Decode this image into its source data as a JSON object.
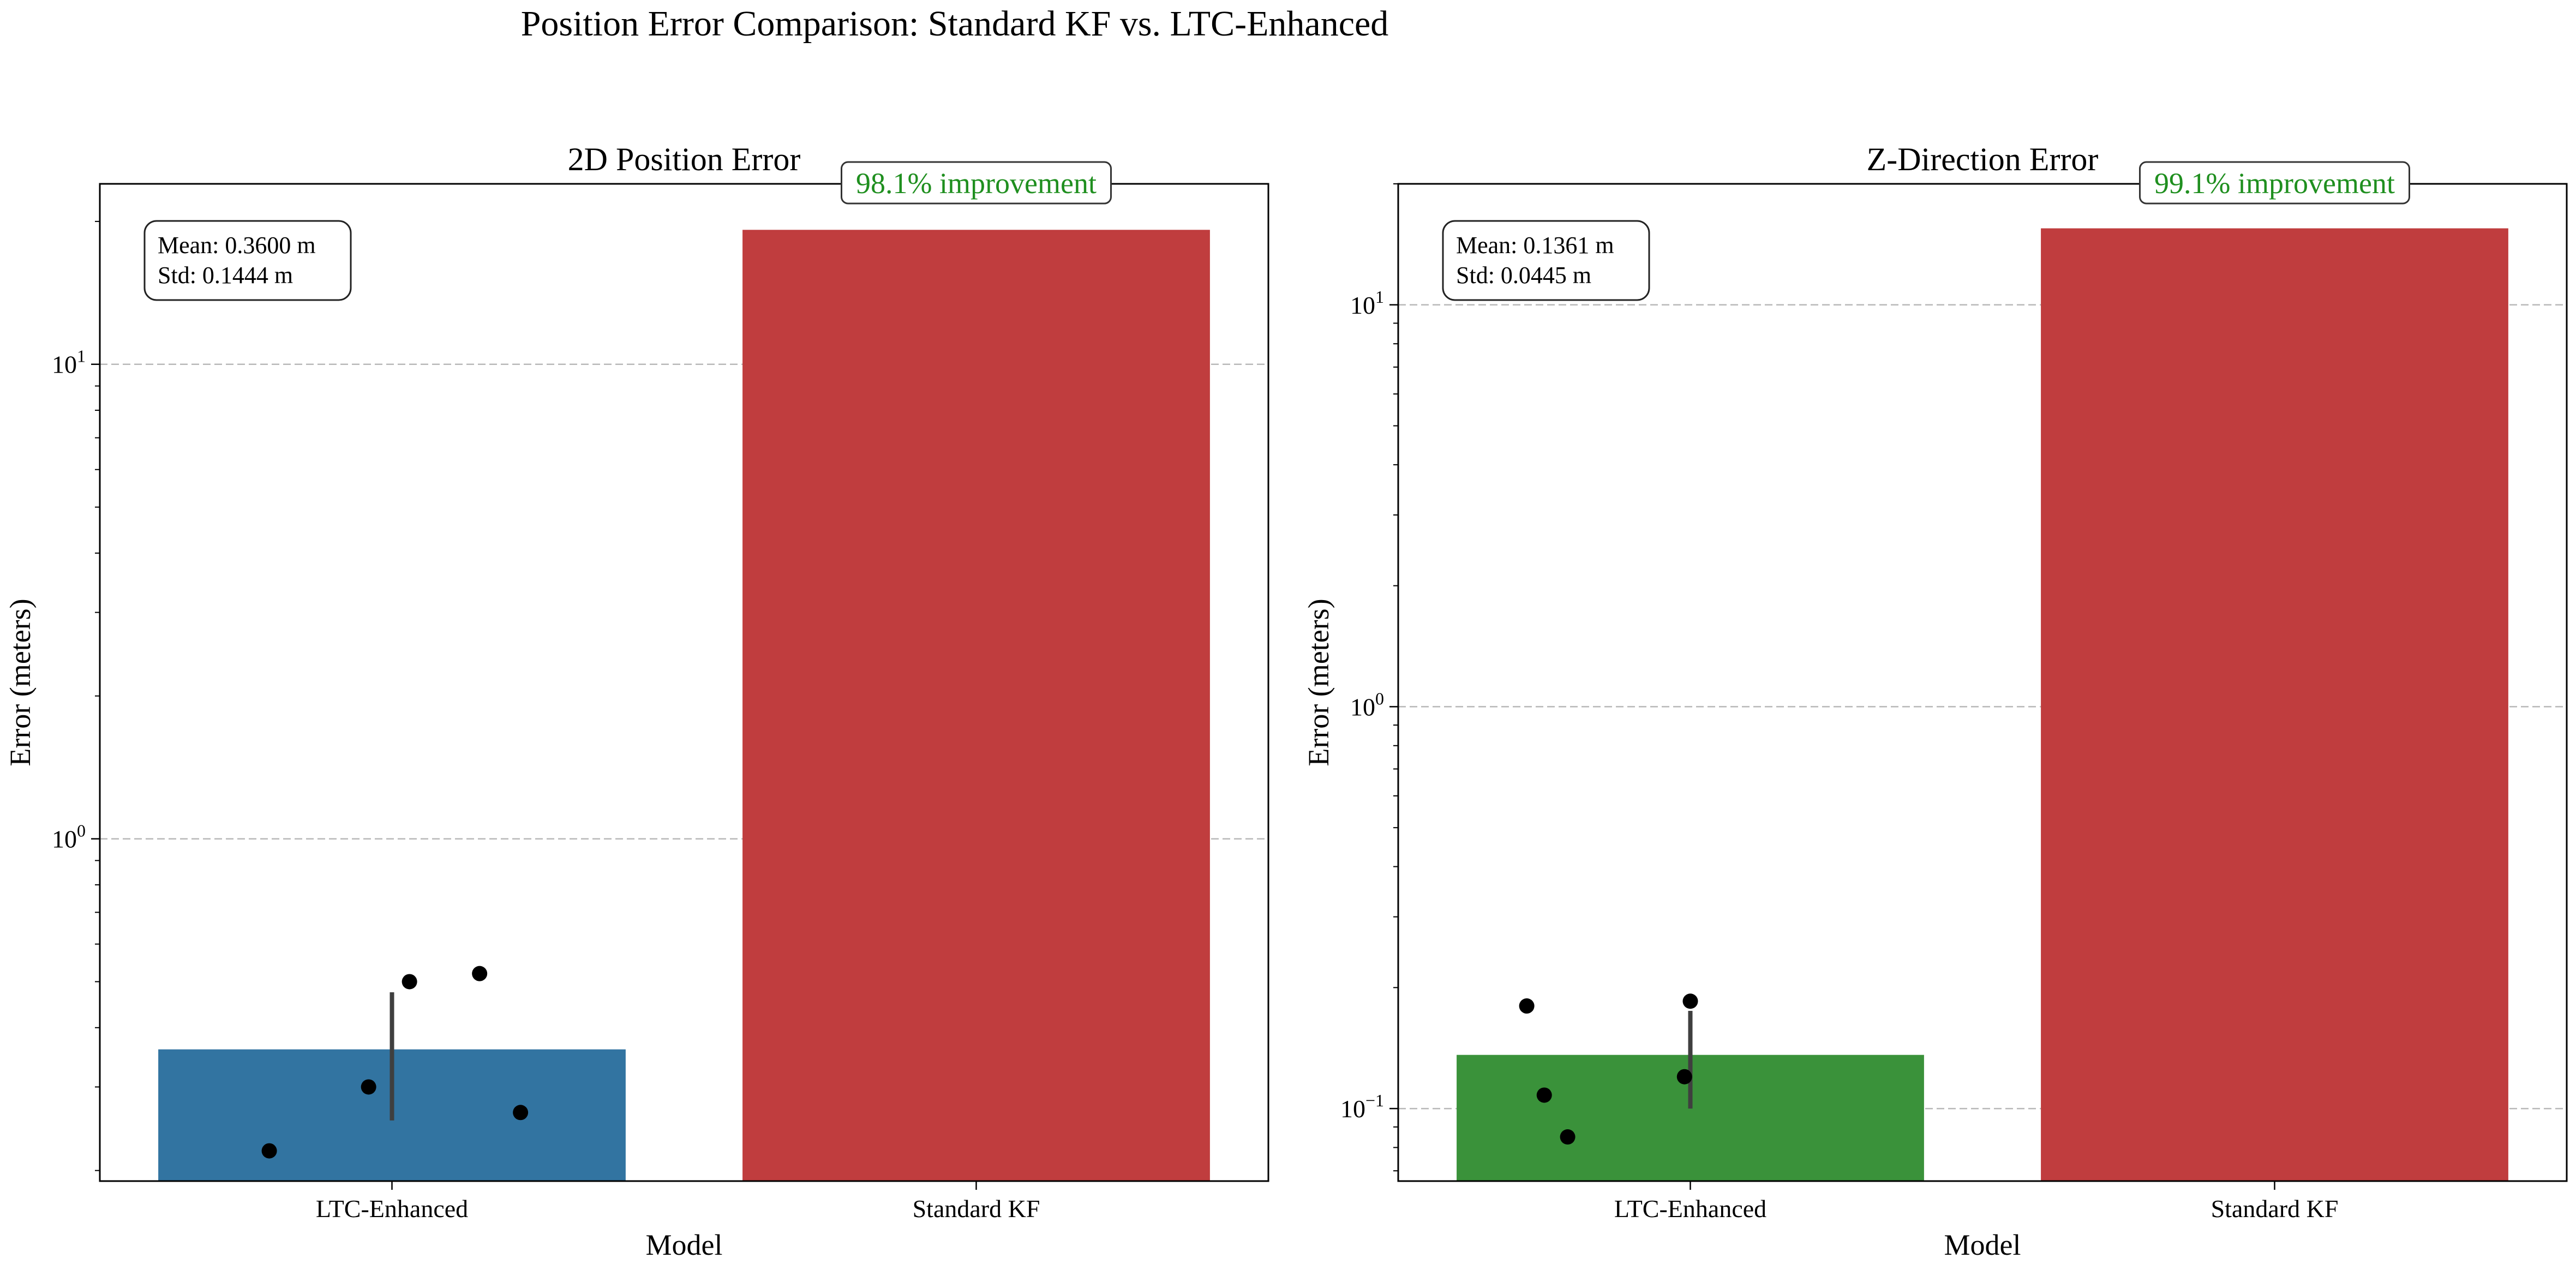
{
  "figure": {
    "title": "Position Error Comparison: Standard KF vs. LTC-Enhanced"
  },
  "chart_data": [
    {
      "type": "bar",
      "title": "2D Position Error",
      "xlabel": "Model",
      "ylabel": "Error (meters)",
      "yscale": "log",
      "ylim": [
        0.19,
        24
      ],
      "categories": [
        "LTC-Enhanced",
        "Standard KF"
      ],
      "values": [
        0.36,
        19.2
      ],
      "bar_colors": [
        "#3274a1",
        "#c03d3e"
      ],
      "y_ticks": [
        {
          "value": 1,
          "base": "10",
          "exp": "0"
        },
        {
          "value": 10,
          "base": "10",
          "exp": "1"
        }
      ],
      "error_bar": {
        "category": "LTC-Enhanced",
        "low": 0.255,
        "high": 0.475
      },
      "points": [
        {
          "category": "LTC-Enhanced",
          "jitter": -0.21,
          "value": 0.22
        },
        {
          "category": "LTC-Enhanced",
          "jitter": -0.04,
          "value": 0.3
        },
        {
          "category": "LTC-Enhanced",
          "jitter": 0.03,
          "value": 0.5
        },
        {
          "category": "LTC-Enhanced",
          "jitter": 0.15,
          "value": 0.52
        },
        {
          "category": "LTC-Enhanced",
          "jitter": 0.22,
          "value": 0.265
        }
      ],
      "stats": {
        "mean_label": "Mean: 0.3600 m",
        "std_label": "Std: 0.1444 m"
      },
      "improvement_label": "98.1% improvement",
      "grid": true
    },
    {
      "type": "bar",
      "title": "Z-Direction Error",
      "xlabel": "Model",
      "ylabel": "Error (meters)",
      "yscale": "log",
      "ylim": [
        0.066,
        20
      ],
      "categories": [
        "LTC-Enhanced",
        "Standard KF"
      ],
      "values": [
        0.136,
        15.5
      ],
      "bar_colors": [
        "#3a923a",
        "#c03d3e"
      ],
      "y_ticks": [
        {
          "value": 0.1,
          "base": "10",
          "exp": "−1"
        },
        {
          "value": 1,
          "base": "10",
          "exp": "0"
        },
        {
          "value": 10,
          "base": "10",
          "exp": "1"
        }
      ],
      "error_bar": {
        "category": "LTC-Enhanced",
        "low": 0.1,
        "high": 0.175
      },
      "points": [
        {
          "category": "LTC-Enhanced",
          "jitter": -0.28,
          "value": 0.18
        },
        {
          "category": "LTC-Enhanced",
          "jitter": -0.25,
          "value": 0.108
        },
        {
          "category": "LTC-Enhanced",
          "jitter": -0.21,
          "value": 0.085
        },
        {
          "category": "LTC-Enhanced",
          "jitter": -0.01,
          "value": 0.12
        },
        {
          "category": "LTC-Enhanced",
          "jitter": 0.0,
          "value": 0.185
        }
      ],
      "stats": {
        "mean_label": "Mean: 0.1361 m",
        "std_label": "Std: 0.0445 m"
      },
      "improvement_label": "99.1% improvement",
      "grid": true
    }
  ]
}
